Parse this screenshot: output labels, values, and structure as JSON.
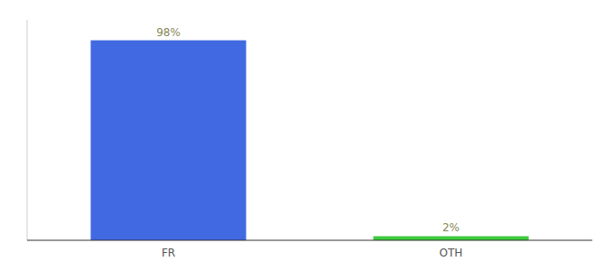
{
  "chart_data": {
    "type": "bar",
    "categories": [
      "FR",
      "OTH"
    ],
    "values": [
      98,
      2
    ],
    "value_labels": [
      "98%",
      "2%"
    ],
    "colors": [
      "#4169E1",
      "#3dcc3d"
    ],
    "ylim": [
      0,
      108
    ],
    "data_labels": true,
    "tick_labels": "x",
    "grid": false
  }
}
